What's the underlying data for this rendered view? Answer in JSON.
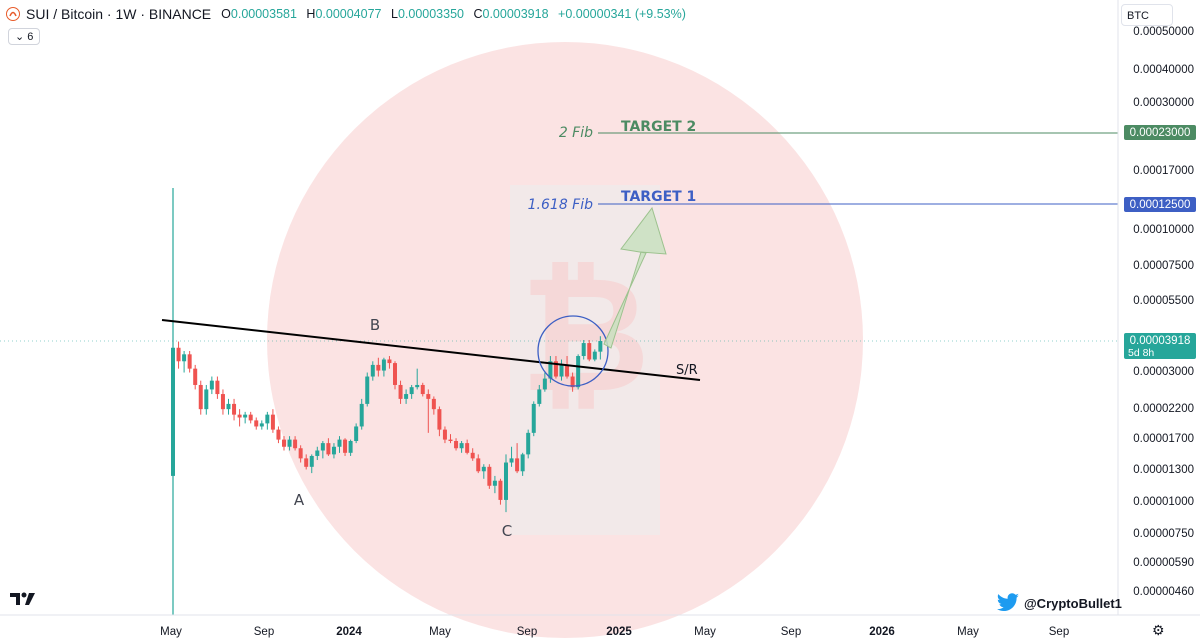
{
  "header": {
    "symbol": "SUI / Bitcoin · 1W · BINANCE",
    "open_label": "O",
    "open": "0.00003581",
    "high_label": "H",
    "high": "0.00004077",
    "low_label": "L",
    "low": "0.00003350",
    "close_label": "C",
    "close": "0.00003918",
    "change": "+0.00000341 (+9.53%)",
    "indicators_count": "6"
  },
  "currency_button": "BTC",
  "credit": "@CryptoBullet1",
  "brand_icon": "tradingview-logo",
  "colors": {
    "bull": "#26a69a",
    "bear": "#ef5350",
    "target2": "#4c8b63",
    "target1": "#3d5fc4",
    "watermark": "#f6c8c8"
  },
  "chart_data": {
    "type": "candlestick",
    "y_scale": "log",
    "y_ticks": [
      "0.00050000",
      "0.00040000",
      "0.00030000",
      "0.00017000",
      "0.00010000",
      "0.00007500",
      "0.00005500",
      "0.00003000",
      "0.00002200",
      "0.00001700",
      "0.00001300",
      "0.00001000",
      "0.00000750",
      "0.00000590",
      "0.00000460"
    ],
    "x_ticks": [
      "May",
      "Sep",
      "2024",
      "May",
      "Sep",
      "2025",
      "May",
      "Sep",
      "2026",
      "May",
      "Sep"
    ],
    "price_labels": [
      {
        "text": "0.00023000",
        "value": 0.00023,
        "color": "#4c8b63"
      },
      {
        "text": "0.00012500",
        "value": 0.000125,
        "color": "#3d5fc4"
      },
      {
        "text": "0.00003918",
        "value": 3.918e-05,
        "color": "#26a69a",
        "sub": "5d 8h"
      }
    ],
    "levels": [
      {
        "name": "TARGET 2",
        "fib": "2 Fib",
        "value": 0.00023
      },
      {
        "name": "TARGET 1",
        "fib": "1.618 Fib",
        "value": 0.000125
      }
    ],
    "trendline_label": "S/R",
    "wave_labels": [
      "A",
      "B",
      "C"
    ],
    "candles": [
      [
        1.25e-05,
        0.0001,
        4.5e-06,
        3.7e-05
      ],
      [
        3.7e-05,
        3.9e-05,
        3.1e-05,
        3.3e-05
      ],
      [
        3.3e-05,
        3.6e-05,
        3e-05,
        3.5e-05
      ],
      [
        3.5e-05,
        3.6e-05,
        3e-05,
        3.1e-05
      ],
      [
        3.1e-05,
        3.2e-05,
        2.6e-05,
        2.7e-05
      ],
      [
        2.7e-05,
        2.8e-05,
        2.1e-05,
        2.2e-05
      ],
      [
        2.2e-05,
        2.7e-05,
        2.1e-05,
        2.6e-05
      ],
      [
        2.6e-05,
        2.9e-05,
        2.5e-05,
        2.8e-05
      ],
      [
        2.8e-05,
        2.9e-05,
        2.4e-05,
        2.5e-05
      ],
      [
        2.5e-05,
        2.6e-05,
        2.1e-05,
        2.2e-05
      ],
      [
        2.2e-05,
        2.4e-05,
        2.1e-05,
        2.3e-05
      ],
      [
        2.3e-05,
        2.4e-05,
        2e-05,
        2.1e-05
      ],
      [
        2.1e-05,
        2.2e-05,
        1.9e-05,
        2.05e-05
      ],
      [
        2.05e-05,
        2.15e-05,
        1.95e-05,
        2.1e-05
      ],
      [
        2.1e-05,
        2.15e-05,
        1.95e-05,
        2e-05
      ],
      [
        2e-05,
        2.05e-05,
        1.85e-05,
        1.9e-05
      ],
      [
        1.9e-05,
        2e-05,
        1.85e-05,
        1.95e-05
      ],
      [
        1.95e-05,
        2.15e-05,
        1.85e-05,
        2.1e-05
      ],
      [
        2.1e-05,
        2.2e-05,
        1.8e-05,
        1.85e-05
      ],
      [
        1.85e-05,
        1.9e-05,
        1.65e-05,
        1.7e-05
      ],
      [
        1.7e-05,
        1.75e-05,
        1.55e-05,
        1.6e-05
      ],
      [
        1.6e-05,
        1.75e-05,
        1.55e-05,
        1.7e-05
      ],
      [
        1.7e-05,
        1.75e-05,
        1.55e-05,
        1.58e-05
      ],
      [
        1.58e-05,
        1.62e-05,
        1.4e-05,
        1.45e-05
      ],
      [
        1.45e-05,
        1.5e-05,
        1.32e-05,
        1.35e-05
      ],
      [
        1.35e-05,
        1.5e-05,
        1.28e-05,
        1.48e-05
      ],
      [
        1.48e-05,
        1.6e-05,
        1.43e-05,
        1.55e-05
      ],
      [
        1.55e-05,
        1.68e-05,
        1.45e-05,
        1.65e-05
      ],
      [
        1.65e-05,
        1.72e-05,
        1.48e-05,
        1.5e-05
      ],
      [
        1.5e-05,
        1.65e-05,
        1.45e-05,
        1.6e-05
      ],
      [
        1.6e-05,
        1.75e-05,
        1.52e-05,
        1.7e-05
      ],
      [
        1.7e-05,
        1.72e-05,
        1.48e-05,
        1.52e-05
      ],
      [
        1.52e-05,
        1.7e-05,
        1.48e-05,
        1.68e-05
      ],
      [
        1.68e-05,
        1.95e-05,
        1.65e-05,
        1.9e-05
      ],
      [
        1.9e-05,
        2.4e-05,
        1.85e-05,
        2.3e-05
      ],
      [
        2.3e-05,
        3e-05,
        2.25e-05,
        2.9e-05
      ],
      [
        2.9e-05,
        3.3e-05,
        2.8e-05,
        3.2e-05
      ],
      [
        3.2e-05,
        3.4e-05,
        2.9e-05,
        3.05e-05
      ],
      [
        3.05e-05,
        3.4e-05,
        2.9e-05,
        3.35e-05
      ],
      [
        3.35e-05,
        3.45e-05,
        3.1e-05,
        3.25e-05
      ],
      [
        3.25e-05,
        3.3e-05,
        2.6e-05,
        2.7e-05
      ],
      [
        2.7e-05,
        2.8e-05,
        2.3e-05,
        2.4e-05
      ],
      [
        2.4e-05,
        2.6e-05,
        2.3e-05,
        2.5e-05
      ],
      [
        2.5e-05,
        2.7e-05,
        2.4e-05,
        2.65e-05
      ],
      [
        2.65e-05,
        3.1e-05,
        2.6e-05,
        2.7e-05
      ],
      [
        2.7e-05,
        2.75e-05,
        2.45e-05,
        2.5e-05
      ],
      [
        2.5e-05,
        2.6e-05,
        1.8e-05,
        2.4e-05
      ],
      [
        2.4e-05,
        2.45e-05,
        2.1e-05,
        2.2e-05
      ],
      [
        2.2e-05,
        2.25e-05,
        1.75e-05,
        1.85e-05
      ],
      [
        1.85e-05,
        1.9e-05,
        1.65e-05,
        1.7e-05
      ],
      [
        1.7e-05,
        1.78e-05,
        1.65e-05,
        1.68e-05
      ],
      [
        1.68e-05,
        1.72e-05,
        1.55e-05,
        1.58e-05
      ],
      [
        1.58e-05,
        1.68e-05,
        1.52e-05,
        1.65e-05
      ],
      [
        1.65e-05,
        1.7e-05,
        1.5e-05,
        1.52e-05
      ],
      [
        1.52e-05,
        1.58e-05,
        1.42e-05,
        1.45e-05
      ],
      [
        1.45e-05,
        1.5e-05,
        1.28e-05,
        1.3e-05
      ],
      [
        1.3e-05,
        1.38e-05,
        1.22e-05,
        1.35e-05
      ],
      [
        1.35e-05,
        1.38e-05,
        1.12e-05,
        1.15e-05
      ],
      [
        1.15e-05,
        1.25e-05,
        1.08e-05,
        1.2e-05
      ],
      [
        1.2e-05,
        1.22e-05,
        9.8e-06,
        1.02e-05
      ],
      [
        1.02e-05,
        1.5e-05,
        9.2e-06,
        1.4e-05
      ],
      [
        1.4e-05,
        1.6e-05,
        1.35e-05,
        1.45e-05
      ],
      [
        1.45e-05,
        1.65e-05,
        1.28e-05,
        1.3e-05
      ],
      [
        1.3e-05,
        1.52e-05,
        1.25e-05,
        1.5e-05
      ],
      [
        1.5e-05,
        1.85e-05,
        1.45e-05,
        1.8e-05
      ],
      [
        1.8e-05,
        2.35e-05,
        1.75e-05,
        2.3e-05
      ],
      [
        2.3e-05,
        2.7e-05,
        2.25e-05,
        2.6e-05
      ],
      [
        2.6e-05,
        3e-05,
        2.55e-05,
        2.85e-05
      ],
      [
        2.85e-05,
        3.45e-05,
        2.75e-05,
        3.3e-05
      ],
      [
        3.3e-05,
        3.45e-05,
        2.85e-05,
        2.9e-05
      ],
      [
        2.9e-05,
        3.35e-05,
        2.8e-05,
        3.2e-05
      ],
      [
        3.2e-05,
        3.45e-05,
        2.85e-05,
        2.9e-05
      ],
      [
        2.9e-05,
        3e-05,
        2.55e-05,
        2.65e-05
      ],
      [
        2.65e-05,
        3.5e-05,
        2.6e-05,
        3.45e-05
      ],
      [
        3.45e-05,
        3.95e-05,
        3.35e-05,
        3.85e-05
      ],
      [
        3.85e-05,
        3.95e-05,
        3.3e-05,
        3.35e-05
      ],
      [
        3.35e-05,
        3.65e-05,
        3.3e-05,
        3.58e-05
      ],
      [
        3.58e-05,
        4.08e-05,
        3.35e-05,
        3.918e-05
      ]
    ]
  }
}
